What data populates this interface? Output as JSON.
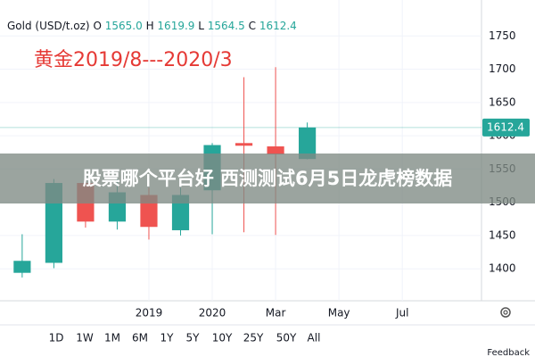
{
  "chart_data": {
    "type": "candlestick",
    "title": "黄金2019/8---2020/3",
    "legend": {
      "name": "Gold (USD/t.oz)",
      "items": [
        {
          "key": "O",
          "label": "1565.0"
        },
        {
          "key": "H",
          "label": "1619.9"
        },
        {
          "key": "L",
          "label": "1564.5"
        },
        {
          "key": "C",
          "label": "1612.4"
        }
      ]
    },
    "categories": [
      null,
      null,
      null,
      null,
      null,
      null,
      null,
      null,
      null,
      null
    ],
    "open": [
      1394,
      1409,
      1529,
      1471,
      1511,
      1458,
      1518,
      1589,
      1584,
      1565.0
    ],
    "high": [
      1452,
      1535,
      1535,
      1535,
      1522,
      1522,
      1589,
      1688,
      1703,
      1619.9
    ],
    "low": [
      1387,
      1401,
      1462,
      1459,
      1444,
      1450,
      1452,
      1455,
      1451,
      1564.5
    ],
    "close": [
      1412,
      1529,
      1471,
      1515,
      1463,
      1511,
      1586,
      1585,
      1572,
      1612.4
    ],
    "up_color": "#26a69a",
    "down_color": "#ef5350",
    "ylim": [
      1352,
      1804
    ],
    "yticks": [
      1400,
      1450,
      1500,
      1550,
      1600,
      1650,
      1700,
      1750
    ],
    "xlim": [
      -0.7,
      14.5
    ],
    "xticks": [
      {
        "value": 4,
        "label": "2019"
      },
      {
        "value": 6,
        "label": "2020"
      },
      {
        "value": 8,
        "label": "Mar"
      },
      {
        "value": 10,
        "label": "May"
      },
      {
        "value": 12,
        "label": "Jul"
      }
    ],
    "grid": true,
    "overlay_text": "股票哪个平台好 西测测试6月5日龙虎榜数据"
  },
  "range_buttons": [
    "1D",
    "1W",
    "1M",
    "6M",
    "1Y",
    "5Y",
    "10Y",
    "25Y",
    "50Y",
    "All"
  ],
  "feedback": "Feedback"
}
